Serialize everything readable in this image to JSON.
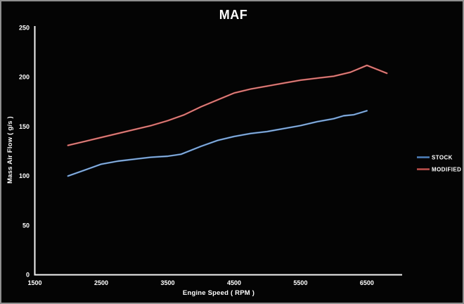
{
  "window": {
    "background": "#040404",
    "border_color": "#8f8f8f",
    "axis_color": "#f2f2f2",
    "text_color": "#ffffff"
  },
  "chart_data": {
    "type": "line",
    "title": "MAF",
    "xlabel": "Engine Speed ( RPM )",
    "ylabel": "Mass Air Flow ( g/s )",
    "xlim": [
      1500,
      7030
    ],
    "ylim": [
      0,
      250
    ],
    "x_ticks": [
      1500,
      2500,
      3500,
      4500,
      5500,
      6500
    ],
    "y_ticks": [
      0,
      50,
      100,
      150,
      200,
      250
    ],
    "grid": false,
    "legend_position": "right",
    "series": [
      {
        "name": "STOCK",
        "color": "#4F81BD",
        "highlight": "#a8c4e6",
        "points": [
          [
            2000,
            100
          ],
          [
            2250,
            106
          ],
          [
            2500,
            112
          ],
          [
            2750,
            115
          ],
          [
            3000,
            117
          ],
          [
            3250,
            119
          ],
          [
            3500,
            120
          ],
          [
            3700,
            122
          ],
          [
            4000,
            130
          ],
          [
            4250,
            136
          ],
          [
            4500,
            140
          ],
          [
            4750,
            143
          ],
          [
            5000,
            145
          ],
          [
            5250,
            148
          ],
          [
            5500,
            151
          ],
          [
            5750,
            155
          ],
          [
            6000,
            158
          ],
          [
            6150,
            161
          ],
          [
            6300,
            162
          ],
          [
            6500,
            166
          ]
        ]
      },
      {
        "name": "MODIFIED",
        "color": "#C0504D",
        "highlight": "#e39a97",
        "points": [
          [
            2000,
            131
          ],
          [
            2250,
            135
          ],
          [
            2500,
            139
          ],
          [
            2750,
            143
          ],
          [
            3000,
            147
          ],
          [
            3250,
            151
          ],
          [
            3500,
            156
          ],
          [
            3750,
            162
          ],
          [
            4000,
            170
          ],
          [
            4250,
            177
          ],
          [
            4500,
            184
          ],
          [
            4750,
            188
          ],
          [
            5000,
            191
          ],
          [
            5250,
            194
          ],
          [
            5500,
            197
          ],
          [
            5750,
            199
          ],
          [
            6000,
            201
          ],
          [
            6250,
            205
          ],
          [
            6500,
            212
          ],
          [
            6650,
            208
          ],
          [
            6800,
            204
          ]
        ]
      }
    ]
  }
}
